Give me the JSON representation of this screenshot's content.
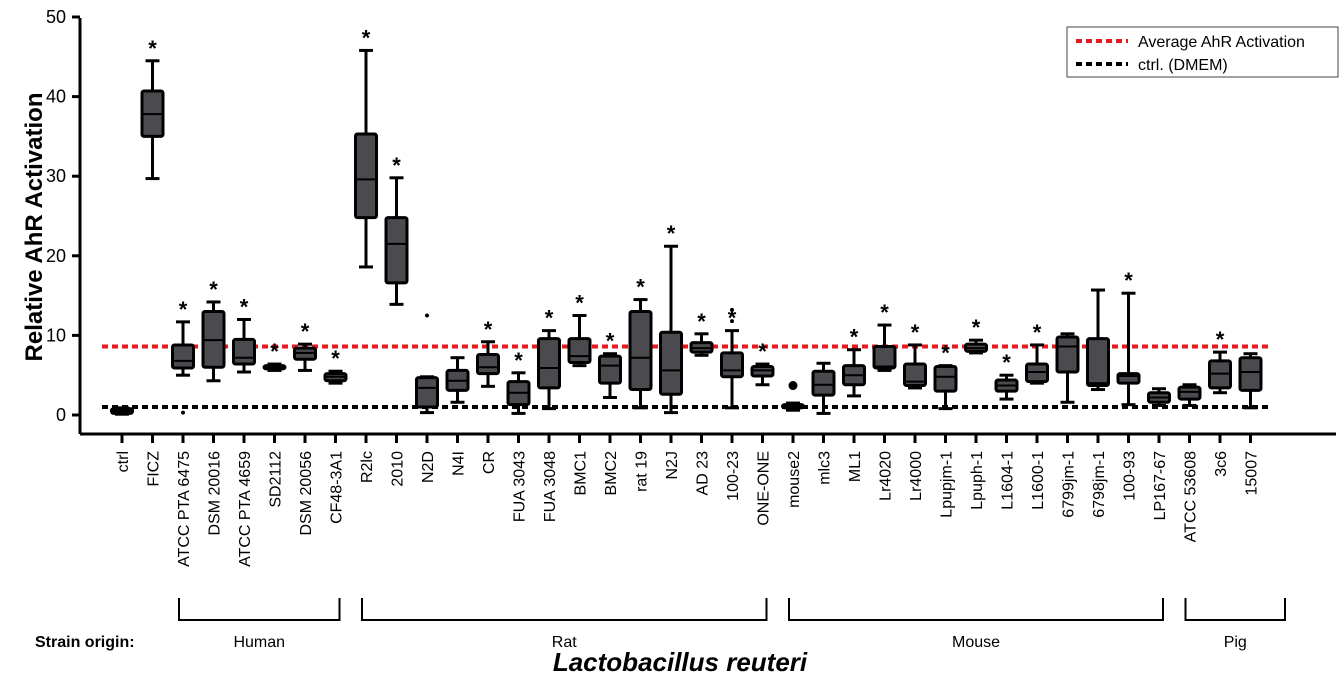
{
  "chart_data": {
    "type": "box",
    "ylabel": "Relative AhR Activation",
    "xlabel": "Lactobacillus reuteri",
    "origin_label": "Strain origin:",
    "ylim": [
      -1,
      50
    ],
    "yticks": [
      0,
      10,
      20,
      30,
      40,
      50
    ],
    "colors": {
      "box": "#4a4a4f",
      "stroke": "#000000",
      "average": "#e8191c",
      "ctrl": "#000000"
    },
    "legend": {
      "position": "top-right",
      "entries": [
        {
          "label": "Average AhR Activation",
          "value": 8.6,
          "color": "#e8191c",
          "style": "dashed"
        },
        {
          "label": "ctrl. (DMEM)",
          "value": 1.0,
          "color": "#000000",
          "style": "dashed"
        }
      ]
    },
    "groups": [
      {
        "label": "Human",
        "from": 2,
        "to": 7
      },
      {
        "label": "Rat",
        "from": 8,
        "to": 21
      },
      {
        "label": "Mouse",
        "from": 22,
        "to": 34
      },
      {
        "label": "Pig",
        "from": 35,
        "to": 38
      }
    ],
    "strains": [
      {
        "name": "ctrl",
        "min": 0.1,
        "q1": 0.2,
        "median": 0.5,
        "q3": 0.8,
        "max": 0.9,
        "sig": false,
        "outliers": []
      },
      {
        "name": "FICZ",
        "min": 29.7,
        "q1": 35.0,
        "median": 37.8,
        "q3": 40.7,
        "max": 44.5,
        "sig": true,
        "outliers": []
      },
      {
        "name": "ATCC PTA 6475",
        "min": 5.0,
        "q1": 5.9,
        "median": 6.8,
        "q3": 8.8,
        "max": 11.7,
        "sig": true,
        "outliers": [
          0.3
        ]
      },
      {
        "name": "DSM 20016",
        "min": 4.3,
        "q1": 6.0,
        "median": 9.4,
        "q3": 13.0,
        "max": 14.2,
        "sig": true,
        "outliers": []
      },
      {
        "name": "ATCC PTA 4659",
        "min": 5.4,
        "q1": 6.4,
        "median": 7.2,
        "q3": 9.5,
        "max": 12.0,
        "sig": true,
        "outliers": []
      },
      {
        "name": "SD2112",
        "min": 5.6,
        "q1": 5.8,
        "median": 6.0,
        "q3": 6.2,
        "max": 6.4,
        "sig": true,
        "outliers": []
      },
      {
        "name": "DSM 20056",
        "min": 5.6,
        "q1": 7.0,
        "median": 7.8,
        "q3": 8.4,
        "max": 8.9,
        "sig": true,
        "outliers": []
      },
      {
        "name": "CF48-3A1",
        "min": 4.0,
        "q1": 4.3,
        "median": 4.8,
        "q3": 5.2,
        "max": 5.5,
        "sig": true,
        "outliers": []
      },
      {
        "name": "R2lc",
        "min": 18.6,
        "q1": 24.8,
        "median": 29.6,
        "q3": 35.3,
        "max": 45.8,
        "sig": true,
        "outliers": []
      },
      {
        "name": "2010",
        "min": 13.9,
        "q1": 16.6,
        "median": 21.5,
        "q3": 24.8,
        "max": 29.8,
        "sig": true,
        "outliers": []
      },
      {
        "name": "N2D",
        "min": 0.3,
        "q1": 1.0,
        "median": 3.4,
        "q3": 4.7,
        "max": 4.8,
        "sig": false,
        "outliers": [
          12.5
        ]
      },
      {
        "name": "N4I",
        "min": 1.6,
        "q1": 3.1,
        "median": 4.3,
        "q3": 5.6,
        "max": 7.2,
        "sig": false,
        "outliers": []
      },
      {
        "name": "CR",
        "min": 3.6,
        "q1": 5.2,
        "median": 6.0,
        "q3": 7.6,
        "max": 9.2,
        "sig": true,
        "outliers": []
      },
      {
        "name": "FUA 3043",
        "min": 0.2,
        "q1": 1.3,
        "median": 2.8,
        "q3": 4.2,
        "max": 5.3,
        "sig": true,
        "outliers": []
      },
      {
        "name": "FUA 3048",
        "min": 0.8,
        "q1": 3.4,
        "median": 5.9,
        "q3": 9.6,
        "max": 10.6,
        "sig": true,
        "outliers": []
      },
      {
        "name": "BMC1",
        "min": 6.2,
        "q1": 6.6,
        "median": 7.4,
        "q3": 9.6,
        "max": 12.5,
        "sig": true,
        "outliers": []
      },
      {
        "name": "BMC2",
        "min": 2.2,
        "q1": 4.0,
        "median": 6.2,
        "q3": 7.4,
        "max": 7.7,
        "sig": true,
        "outliers": []
      },
      {
        "name": "rat 19",
        "min": 0.9,
        "q1": 3.2,
        "median": 7.2,
        "q3": 13.0,
        "max": 14.5,
        "sig": true,
        "outliers": []
      },
      {
        "name": "N2J",
        "min": 0.3,
        "q1": 2.6,
        "median": 5.6,
        "q3": 10.4,
        "max": 21.2,
        "sig": true,
        "outliers": []
      },
      {
        "name": "AD 23",
        "min": 7.5,
        "q1": 7.9,
        "median": 8.4,
        "q3": 9.1,
        "max": 10.2,
        "sig": true,
        "outliers": []
      },
      {
        "name": "100-23",
        "min": 0.9,
        "q1": 4.8,
        "median": 5.6,
        "q3": 7.8,
        "max": 10.6,
        "sig": true,
        "outliers": [
          11.8,
          13.2
        ]
      },
      {
        "name": "ONE-ONE",
        "min": 3.8,
        "q1": 4.9,
        "median": 5.6,
        "q3": 6.1,
        "max": 6.4,
        "sig": true,
        "outliers": []
      },
      {
        "name": "mouse2",
        "min": 0.6,
        "q1": 0.9,
        "median": 1.1,
        "q3": 1.3,
        "max": 1.5,
        "sig": false,
        "outliers": [
          3.7
        ]
      },
      {
        "name": "mlc3",
        "min": 0.2,
        "q1": 2.5,
        "median": 3.8,
        "q3": 5.5,
        "max": 6.5,
        "sig": false,
        "outliers": []
      },
      {
        "name": "ML1",
        "min": 2.4,
        "q1": 3.8,
        "median": 5.0,
        "q3": 6.2,
        "max": 8.2,
        "sig": true,
        "outliers": []
      },
      {
        "name": "Lr4020",
        "min": 5.6,
        "q1": 5.9,
        "median": 6.1,
        "q3": 8.6,
        "max": 11.3,
        "sig": true,
        "outliers": []
      },
      {
        "name": "Lr4000",
        "min": 3.4,
        "q1": 3.7,
        "median": 4.2,
        "q3": 6.4,
        "max": 8.8,
        "sig": true,
        "outliers": []
      },
      {
        "name": "Lpupjm-1",
        "min": 0.8,
        "q1": 3.0,
        "median": 4.8,
        "q3": 6.1,
        "max": 6.2,
        "sig": true,
        "outliers": []
      },
      {
        "name": "Lpuph-1",
        "min": 7.8,
        "q1": 8.0,
        "median": 8.4,
        "q3": 8.9,
        "max": 9.4,
        "sig": true,
        "outliers": []
      },
      {
        "name": "L1604-1",
        "min": 2.0,
        "q1": 3.0,
        "median": 3.7,
        "q3": 4.4,
        "max": 5.0,
        "sig": true,
        "outliers": []
      },
      {
        "name": "L1600-1",
        "min": 4.0,
        "q1": 4.2,
        "median": 5.4,
        "q3": 6.4,
        "max": 8.8,
        "sig": true,
        "outliers": []
      },
      {
        "name": "6799jm-1",
        "min": 1.6,
        "q1": 5.4,
        "median": 8.6,
        "q3": 9.8,
        "max": 10.2,
        "sig": false,
        "outliers": []
      },
      {
        "name": "6798jm-1",
        "min": 3.2,
        "q1": 3.7,
        "median": 4.0,
        "q3": 9.6,
        "max": 15.7,
        "sig": false,
        "outliers": []
      },
      {
        "name": "100-93",
        "min": 1.3,
        "q1": 4.0,
        "median": 4.9,
        "q3": 5.2,
        "max": 15.3,
        "sig": true,
        "outliers": []
      },
      {
        "name": "LP167-67",
        "min": 1.2,
        "q1": 1.6,
        "median": 2.2,
        "q3": 2.8,
        "max": 3.3,
        "sig": false,
        "outliers": []
      },
      {
        "name": "ATCC 53608",
        "min": 1.2,
        "q1": 2.0,
        "median": 2.9,
        "q3": 3.5,
        "max": 3.8,
        "sig": false,
        "outliers": []
      },
      {
        "name": "3c6",
        "min": 2.8,
        "q1": 3.4,
        "median": 5.2,
        "q3": 6.8,
        "max": 7.9,
        "sig": true,
        "outliers": []
      },
      {
        "name": "15007",
        "min": 0.9,
        "q1": 3.1,
        "median": 5.4,
        "q3": 7.2,
        "max": 7.7,
        "sig": false,
        "outliers": []
      }
    ]
  }
}
